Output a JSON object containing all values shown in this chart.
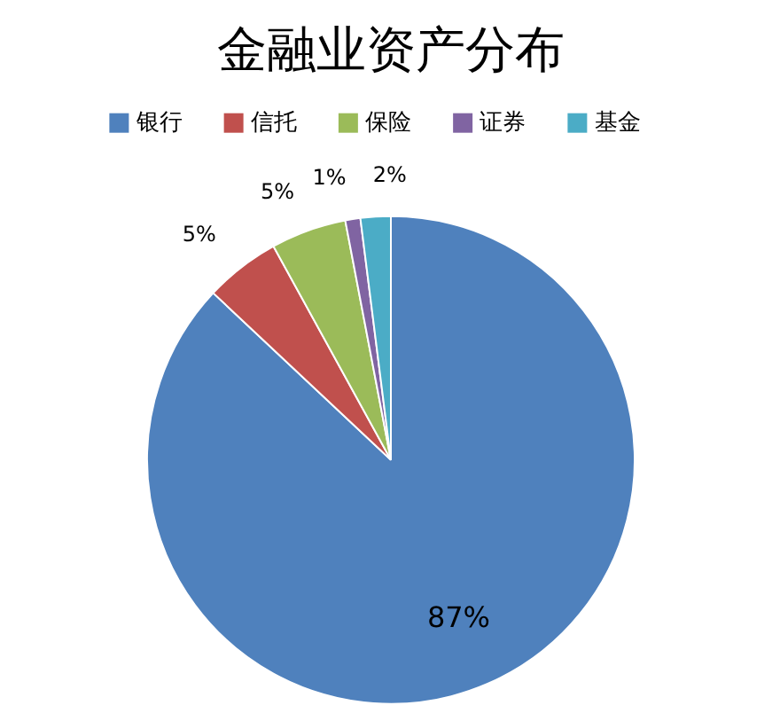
{
  "chart_data": {
    "type": "pie",
    "title": "金融业资产分布",
    "categories": [
      "银行",
      "信托",
      "保险",
      "证券",
      "基金"
    ],
    "values": [
      87,
      5,
      5,
      1,
      2
    ],
    "value_labels": [
      "87%",
      "5%",
      "5%",
      "1%",
      "2%"
    ],
    "colors": [
      "#4f81bd",
      "#c0504d",
      "#9bbb59",
      "#8064a2",
      "#4bacc6"
    ],
    "legend": "top"
  }
}
